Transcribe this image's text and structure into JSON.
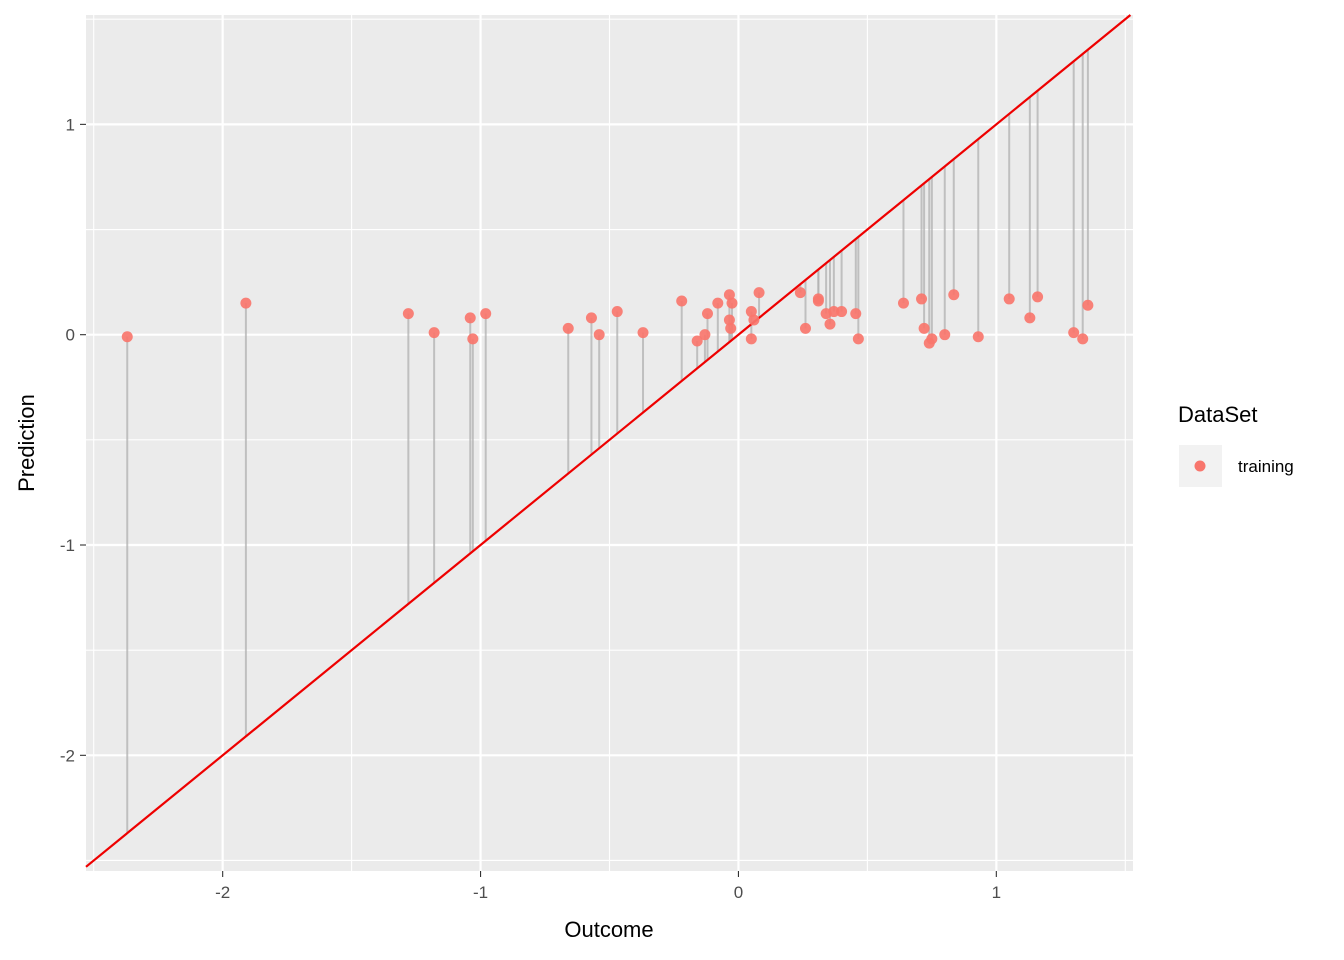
{
  "chart_data": {
    "type": "scatter",
    "xlabel": "Outcome",
    "ylabel": "Prediction",
    "xlim": [
      -2.53,
      1.53
    ],
    "ylim": [
      -2.55,
      1.52
    ],
    "x_ticks": [
      -2,
      -1,
      0,
      1
    ],
    "x_tick_labels": [
      "-2",
      "-1",
      "0",
      "1"
    ],
    "y_ticks": [
      -2,
      -1,
      0,
      1
    ],
    "y_tick_labels": [
      "-2",
      "-1",
      "0",
      "1"
    ],
    "grid": true,
    "reference_line": {
      "slope": 1,
      "intercept": 0,
      "color": "#ee0000"
    },
    "legend": {
      "title": "DataSet",
      "position": "right",
      "entries": [
        "training"
      ]
    },
    "series": [
      {
        "name": "training",
        "color": "#f8766d",
        "points": [
          {
            "x": -2.37,
            "y": -0.01
          },
          {
            "x": -1.91,
            "y": 0.15
          },
          {
            "x": -1.28,
            "y": 0.1
          },
          {
            "x": -1.18,
            "y": 0.01
          },
          {
            "x": -1.04,
            "y": 0.08
          },
          {
            "x": -1.03,
            "y": -0.02
          },
          {
            "x": -0.98,
            "y": 0.1
          },
          {
            "x": -0.66,
            "y": 0.03
          },
          {
            "x": -0.57,
            "y": 0.08
          },
          {
            "x": -0.54,
            "y": 0.0
          },
          {
            "x": -0.47,
            "y": 0.11
          },
          {
            "x": -0.37,
            "y": 0.01
          },
          {
            "x": -0.22,
            "y": 0.16
          },
          {
            "x": -0.16,
            "y": -0.03
          },
          {
            "x": -0.13,
            "y": 0.0
          },
          {
            "x": -0.12,
            "y": 0.1
          },
          {
            "x": -0.08,
            "y": 0.15
          },
          {
            "x": -0.035,
            "y": 0.19
          },
          {
            "x": -0.035,
            "y": 0.07
          },
          {
            "x": -0.03,
            "y": 0.03
          },
          {
            "x": -0.025,
            "y": 0.15
          },
          {
            "x": 0.05,
            "y": 0.11
          },
          {
            "x": 0.05,
            "y": -0.02
          },
          {
            "x": 0.06,
            "y": 0.07
          },
          {
            "x": 0.08,
            "y": 0.2
          },
          {
            "x": 0.24,
            "y": 0.2
          },
          {
            "x": 0.26,
            "y": 0.03
          },
          {
            "x": 0.31,
            "y": 0.16
          },
          {
            "x": 0.31,
            "y": 0.17
          },
          {
            "x": 0.34,
            "y": 0.1
          },
          {
            "x": 0.355,
            "y": 0.05
          },
          {
            "x": 0.37,
            "y": 0.11
          },
          {
            "x": 0.4,
            "y": 0.11
          },
          {
            "x": 0.455,
            "y": 0.1
          },
          {
            "x": 0.465,
            "y": -0.02
          },
          {
            "x": 0.64,
            "y": 0.15
          },
          {
            "x": 0.71,
            "y": 0.17
          },
          {
            "x": 0.72,
            "y": 0.03
          },
          {
            "x": 0.74,
            "y": -0.04
          },
          {
            "x": 0.75,
            "y": -0.02
          },
          {
            "x": 0.8,
            "y": 0.0
          },
          {
            "x": 0.835,
            "y": 0.19
          },
          {
            "x": 0.93,
            "y": -0.01
          },
          {
            "x": 1.05,
            "y": 0.17
          },
          {
            "x": 1.13,
            "y": 0.08
          },
          {
            "x": 1.16,
            "y": 0.18
          },
          {
            "x": 1.3,
            "y": 0.01
          },
          {
            "x": 1.335,
            "y": -0.02
          },
          {
            "x": 1.355,
            "y": 0.14
          }
        ]
      }
    ]
  }
}
